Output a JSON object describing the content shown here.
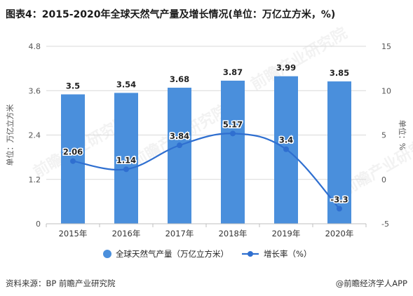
{
  "title": "图表4：2015-2020年全球天然气产量及增长情况(单位：万亿立方米，%)",
  "footer": {
    "source": "资料来源：BP 前瞻产业研究院",
    "brand": "@前瞻经济学人APP"
  },
  "watermark_text": "前瞻产业研究院",
  "colors": {
    "bar": "#4a8fdc",
    "line": "#2f6fd0",
    "grid": "#d9d9d9",
    "axis_text": "#555555"
  },
  "chart_data": {
    "type": "bar",
    "categories": [
      "2015年",
      "2016年",
      "2017年",
      "2018年",
      "2019年",
      "2020年"
    ],
    "series": [
      {
        "name": "全球天然气产量（万亿立方米）",
        "type": "bar",
        "axis": "left",
        "values": [
          3.5,
          3.54,
          3.68,
          3.87,
          3.99,
          3.85
        ],
        "labels": [
          "3.5",
          "3.54",
          "3.68",
          "3.87",
          "3.99",
          "3.85"
        ]
      },
      {
        "name": "增长率（%）",
        "type": "line",
        "axis": "right",
        "values": [
          2.06,
          1.14,
          3.84,
          5.17,
          3.4,
          -3.3
        ],
        "labels": [
          "2.06",
          "1.14",
          "3.84",
          "5.17",
          "3.4",
          "-3.3"
        ]
      }
    ],
    "ylabel": "单位：万亿立方米",
    "y2label": "单位：%",
    "ylim": [
      0,
      4.8
    ],
    "yticks": [
      "0",
      "1.2",
      "2.4",
      "3.6",
      "4.8"
    ],
    "y2lim": [
      -5,
      15
    ],
    "y2ticks": [
      "-5",
      "0",
      "5",
      "10",
      "15"
    ],
    "grid": true,
    "legend_position": "bottom"
  }
}
